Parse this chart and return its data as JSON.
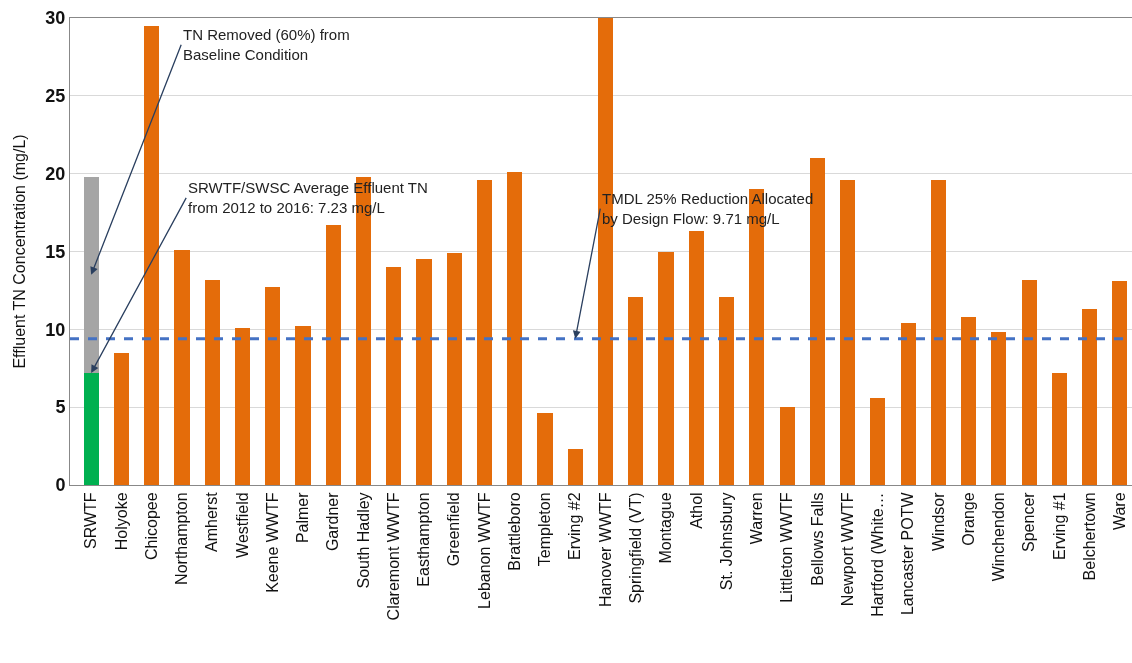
{
  "chart_data": {
    "type": "bar",
    "stacked": true,
    "ylabel": "Effluent TN Concentration (mg/L)",
    "categories": [
      "SRWTF",
      "Holyoke",
      "Chicopee",
      "Northampton",
      "Amherst",
      "Westfield",
      "Keene WWTF",
      "Palmer",
      "Gardner",
      "South Hadley",
      "Claremont WWTF",
      "Easthampton",
      "Greenfield",
      "Lebanon WWTF",
      "Brattleboro",
      "Templeton",
      "Erving #2",
      "Hanover WWTF",
      "Springfield (VT)",
      "Montague",
      "Athol",
      "St. Johnsbury",
      "Warren",
      "Littleton WWTF",
      "Bellows Falls",
      "Newport WWTF",
      "Hartford (White…",
      "Lancaster POTW",
      "Windsor",
      "Orange",
      "Winchendon",
      "Spencer",
      "Erving #1",
      "Belchertown",
      "Ware"
    ],
    "series": [
      {
        "color": "#00b050",
        "values": [
          7.2,
          null,
          null,
          null,
          null,
          null,
          null,
          null,
          null,
          null,
          null,
          null,
          null,
          null,
          null,
          null,
          null,
          null,
          null,
          null,
          null,
          null,
          null,
          null,
          null,
          null,
          null,
          null,
          null,
          null,
          null,
          null,
          null,
          null,
          null
        ]
      },
      {
        "color": "#a5a5a5",
        "values": [
          12.6,
          null,
          null,
          null,
          null,
          null,
          null,
          null,
          null,
          null,
          null,
          null,
          null,
          null,
          null,
          null,
          null,
          null,
          null,
          null,
          null,
          null,
          null,
          null,
          null,
          null,
          null,
          null,
          null,
          null,
          null,
          null,
          null,
          null,
          null
        ]
      },
      {
        "color": "#e46c0a",
        "values": [
          null,
          8.5,
          29.5,
          15.1,
          13.2,
          10.1,
          12.7,
          10.2,
          16.7,
          19.8,
          14.0,
          14.5,
          14.9,
          19.6,
          20.1,
          4.6,
          2.3,
          30,
          12.1,
          15.0,
          16.3,
          12.1,
          19.0,
          5.0,
          21.0,
          19.6,
          5.6,
          10.4,
          19.6,
          10.8,
          9.8,
          13.2,
          7.2,
          11.3,
          13.1
        ]
      }
    ],
    "ylim": [
      0,
      30
    ],
    "yticks": [
      0,
      5,
      10,
      15,
      20,
      25,
      30
    ],
    "grid": "y",
    "ref_lines": [
      {
        "axis": "y",
        "value": 9.4,
        "color": "#4472c4",
        "line_style": "dashed"
      }
    ],
    "annotations": [
      "TN Removed (60%) from\nBaseline Condition",
      {
        "text": "SRWTF/SWSC Average Effluent TN\nfrom 2012 to 2016: 7.23 mg/L",
        "x": "SRWTF",
        "y": 7.2
      },
      {
        "text": "TMDL 25% Reduction Allocated\nby Design Flow: 9.71 mg/L",
        "x": "Erving #2",
        "y": 9.4
      }
    ]
  }
}
